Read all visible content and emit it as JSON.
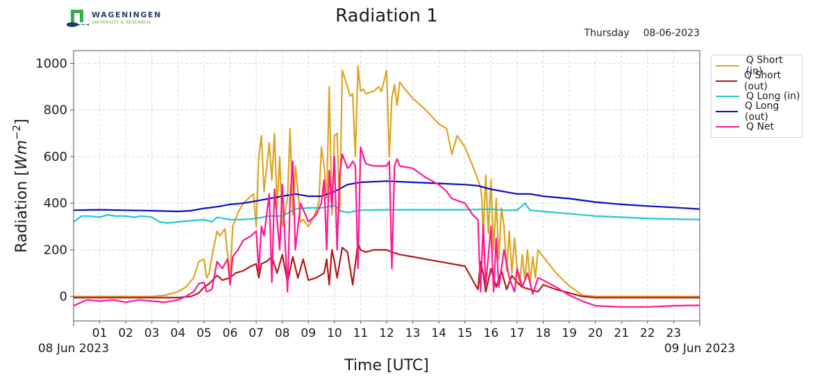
{
  "header": {
    "logo_name": "WAGENINGEN",
    "logo_sub": "UNIVERSITY & RESEARCH",
    "title": "Radiation 1",
    "weekday": "Thursday",
    "date": "08-06-2023"
  },
  "colors": {
    "q_short_in": "#daa520",
    "q_short_out": "#b01818",
    "q_long_in": "#1fc8c8",
    "q_long_out": "#0a0ac0",
    "q_net": "#ff1493",
    "grid": "#d9d9d9",
    "axis": "#555555"
  },
  "chart_data": {
    "type": "line",
    "title": "Radiation 1",
    "xlabel": "Time [UTC]",
    "ylabel": "Radiation [Wm^-2]",
    "ylabel_main": "Radiation [",
    "ylabel_unit": "Wm",
    "ylabel_exp": "−2",
    "ylabel_close": "]",
    "xlim_hours": [
      0,
      24
    ],
    "ylim": [
      -105,
      1055
    ],
    "grid": true,
    "legend_position": "outside-right-top",
    "x_tick_labels": [
      "01",
      "02",
      "03",
      "04",
      "05",
      "06",
      "07",
      "08",
      "09",
      "10",
      "11",
      "12",
      "13",
      "14",
      "15",
      "16",
      "17",
      "18",
      "19",
      "20",
      "21",
      "22",
      "23"
    ],
    "x_ticks_hours": [
      1,
      2,
      3,
      4,
      5,
      6,
      7,
      8,
      9,
      10,
      11,
      12,
      13,
      14,
      15,
      16,
      17,
      18,
      19,
      20,
      21,
      22,
      23
    ],
    "x_date_labels": [
      {
        "hour": 0,
        "text": "08 Jun 2023"
      },
      {
        "hour": 24,
        "text": "09 Jun 2023"
      }
    ],
    "y_ticks": [
      0,
      200,
      400,
      600,
      800,
      1000
    ],
    "y_tick_labels": [
      "0",
      "200",
      "400",
      "600",
      "800",
      "1000"
    ],
    "series": [
      {
        "name": "Q Short (in)",
        "key": "q_short_in",
        "x": [
          0,
          1,
          2,
          3,
          3.5,
          4,
          4.3,
          4.6,
          4.8,
          5.0,
          5.1,
          5.2,
          5.3,
          5.5,
          5.6,
          5.8,
          6.0,
          6.1,
          6.2,
          6.3,
          6.5,
          6.7,
          6.9,
          7.0,
          7.1,
          7.2,
          7.3,
          7.5,
          7.6,
          7.7,
          7.8,
          7.9,
          8.0,
          8.2,
          8.3,
          8.4,
          8.5,
          8.6,
          8.7,
          8.8,
          9.0,
          9.2,
          9.4,
          9.5,
          9.6,
          9.7,
          9.8,
          9.9,
          10.0,
          10.1,
          10.2,
          10.3,
          10.5,
          10.6,
          10.7,
          10.8,
          10.9,
          11.0,
          11.1,
          11.2,
          11.5,
          11.7,
          11.8,
          12.0,
          12.1,
          12.2,
          12.3,
          12.4,
          12.5,
          12.7,
          13.0,
          13.5,
          14.0,
          14.3,
          14.5,
          14.7,
          15.0,
          15.3,
          15.5,
          15.6,
          15.65,
          15.7,
          15.8,
          15.9,
          16.0,
          16.1,
          16.2,
          16.3,
          16.4,
          16.5,
          16.6,
          16.7,
          16.8,
          16.9,
          17.0,
          17.1,
          17.2,
          17.3,
          17.4,
          17.5,
          17.6,
          17.7,
          17.8,
          18.0,
          18.5,
          19.0,
          19.5,
          20.0,
          20.5,
          21,
          22,
          23,
          24
        ],
        "y": [
          0,
          0,
          0,
          0,
          5,
          20,
          40,
          80,
          150,
          160,
          80,
          100,
          170,
          280,
          260,
          290,
          80,
          300,
          330,
          360,
          400,
          420,
          440,
          300,
          600,
          690,
          450,
          660,
          500,
          700,
          380,
          600,
          300,
          420,
          720,
          350,
          560,
          450,
          320,
          330,
          300,
          340,
          400,
          640,
          560,
          420,
          900,
          350,
          690,
          700,
          360,
          970,
          900,
          860,
          870,
          600,
          990,
          880,
          890,
          870,
          880,
          900,
          880,
          970,
          600,
          850,
          910,
          820,
          920,
          890,
          850,
          800,
          740,
          720,
          610,
          690,
          640,
          560,
          500,
          470,
          420,
          250,
          520,
          270,
          500,
          200,
          420,
          160,
          380,
          300,
          110,
          280,
          100,
          250,
          120,
          50,
          180,
          70,
          200,
          60,
          170,
          80,
          200,
          170,
          100,
          45,
          5,
          0,
          0,
          0,
          0,
          0,
          0
        ]
      },
      {
        "name": "Q Short (out)",
        "key": "q_short_out",
        "x": [
          0,
          4,
          4.5,
          4.8,
          5.0,
          5.2,
          5.5,
          5.7,
          6.0,
          6.2,
          6.5,
          6.8,
          7.0,
          7.1,
          7.2,
          7.4,
          7.6,
          7.8,
          8.0,
          8.2,
          8.4,
          8.6,
          8.8,
          9.0,
          9.3,
          9.6,
          9.7,
          9.8,
          9.9,
          10.0,
          10.1,
          10.3,
          10.5,
          10.7,
          10.9,
          11.0,
          11.2,
          11.5,
          12.0,
          12.2,
          12.5,
          13.0,
          14.0,
          15.0,
          15.5,
          15.6,
          15.7,
          15.8,
          16.0,
          16.2,
          16.4,
          16.6,
          16.8,
          17.0,
          17.2,
          17.5,
          17.8,
          18.0,
          18.5,
          19.0,
          19.5,
          20.0,
          21,
          22,
          23,
          24
        ],
        "y": [
          -5,
          -5,
          0,
          15,
          40,
          55,
          90,
          70,
          80,
          100,
          110,
          130,
          140,
          80,
          140,
          150,
          170,
          100,
          180,
          60,
          170,
          80,
          160,
          70,
          80,
          100,
          160,
          50,
          200,
          150,
          80,
          210,
          190,
          50,
          230,
          200,
          190,
          200,
          200,
          190,
          180,
          170,
          150,
          130,
          30,
          150,
          100,
          20,
          120,
          40,
          110,
          30,
          90,
          60,
          40,
          30,
          20,
          50,
          30,
          15,
          0,
          -5,
          -5,
          -5,
          -5,
          -5
        ]
      },
      {
        "name": "Q Long (in)",
        "key": "q_long_in",
        "x": [
          0,
          0.3,
          0.6,
          1,
          1.3,
          1.6,
          2,
          2.3,
          2.6,
          3,
          3.3,
          3.6,
          4,
          4.5,
          5,
          5.3,
          5.5,
          6,
          6.5,
          7,
          7.5,
          8,
          8.5,
          9,
          9.5,
          10,
          10.3,
          10.5,
          11,
          12,
          13,
          14,
          15,
          16,
          16.5,
          17,
          17.3,
          17.5,
          18,
          19,
          20,
          21,
          22,
          23,
          24
        ],
        "y": [
          320,
          345,
          345,
          340,
          350,
          345,
          345,
          340,
          345,
          340,
          320,
          315,
          320,
          325,
          330,
          320,
          340,
          330,
          330,
          335,
          345,
          345,
          375,
          380,
          380,
          390,
          365,
          360,
          370,
          372,
          372,
          372,
          372,
          375,
          370,
          370,
          400,
          370,
          365,
          355,
          345,
          340,
          335,
          332,
          330
        ]
      },
      {
        "name": "Q Long (out)",
        "key": "q_long_out",
        "x": [
          0,
          1,
          2,
          3,
          4,
          4.5,
          5,
          5.5,
          6,
          6.5,
          7,
          7.5,
          8,
          8.5,
          9,
          9.5,
          10,
          10.5,
          11,
          12,
          13,
          14,
          15,
          15.5,
          16,
          16.5,
          17,
          17.5,
          18,
          19,
          20,
          21,
          22,
          23,
          24
        ],
        "y": [
          370,
          372,
          370,
          368,
          365,
          368,
          378,
          385,
          395,
          400,
          410,
          420,
          430,
          440,
          430,
          430,
          450,
          480,
          490,
          495,
          490,
          485,
          480,
          475,
          460,
          450,
          440,
          440,
          430,
          420,
          405,
          395,
          388,
          382,
          375
        ]
      },
      {
        "name": "Q Net",
        "key": "q_net",
        "x": [
          0,
          0.5,
          1,
          1.5,
          2,
          2.5,
          3,
          3.5,
          4,
          4.3,
          4.6,
          4.8,
          5.0,
          5.1,
          5.3,
          5.5,
          5.7,
          5.9,
          6.0,
          6.1,
          6.3,
          6.5,
          6.8,
          7.0,
          7.1,
          7.2,
          7.3,
          7.5,
          7.6,
          7.7,
          7.9,
          8.0,
          8.2,
          8.3,
          8.4,
          8.5,
          8.7,
          9.0,
          9.3,
          9.5,
          9.6,
          9.7,
          9.8,
          9.9,
          10.0,
          10.1,
          10.2,
          10.3,
          10.5,
          10.6,
          10.7,
          10.8,
          10.9,
          11.0,
          11.2,
          11.5,
          12.0,
          12.1,
          12.2,
          12.3,
          12.4,
          12.5,
          13.0,
          13.5,
          14.0,
          14.3,
          14.5,
          15.0,
          15.3,
          15.5,
          15.6,
          15.7,
          15.8,
          16.0,
          16.1,
          16.2,
          16.3,
          16.5,
          16.7,
          16.9,
          17.0,
          17.2,
          17.4,
          17.6,
          17.8,
          18.0,
          18.5,
          19.0,
          19.5,
          20.0,
          21,
          22,
          23,
          24
        ],
        "y": [
          -40,
          -15,
          -20,
          -15,
          -25,
          -15,
          -20,
          -25,
          -15,
          0,
          20,
          55,
          60,
          20,
          30,
          150,
          120,
          160,
          50,
          170,
          200,
          240,
          260,
          280,
          110,
          300,
          260,
          440,
          60,
          460,
          200,
          480,
          20,
          420,
          580,
          200,
          400,
          320,
          350,
          400,
          500,
          200,
          540,
          380,
          600,
          200,
          520,
          610,
          550,
          560,
          580,
          560,
          120,
          640,
          570,
          560,
          560,
          580,
          120,
          560,
          590,
          560,
          550,
          510,
          480,
          450,
          420,
          400,
          350,
          330,
          20,
          310,
          50,
          300,
          20,
          250,
          40,
          200,
          80,
          20,
          120,
          40,
          100,
          10,
          80,
          70,
          40,
          5,
          -20,
          -40,
          -45,
          -45,
          -40,
          -38
        ]
      }
    ]
  }
}
